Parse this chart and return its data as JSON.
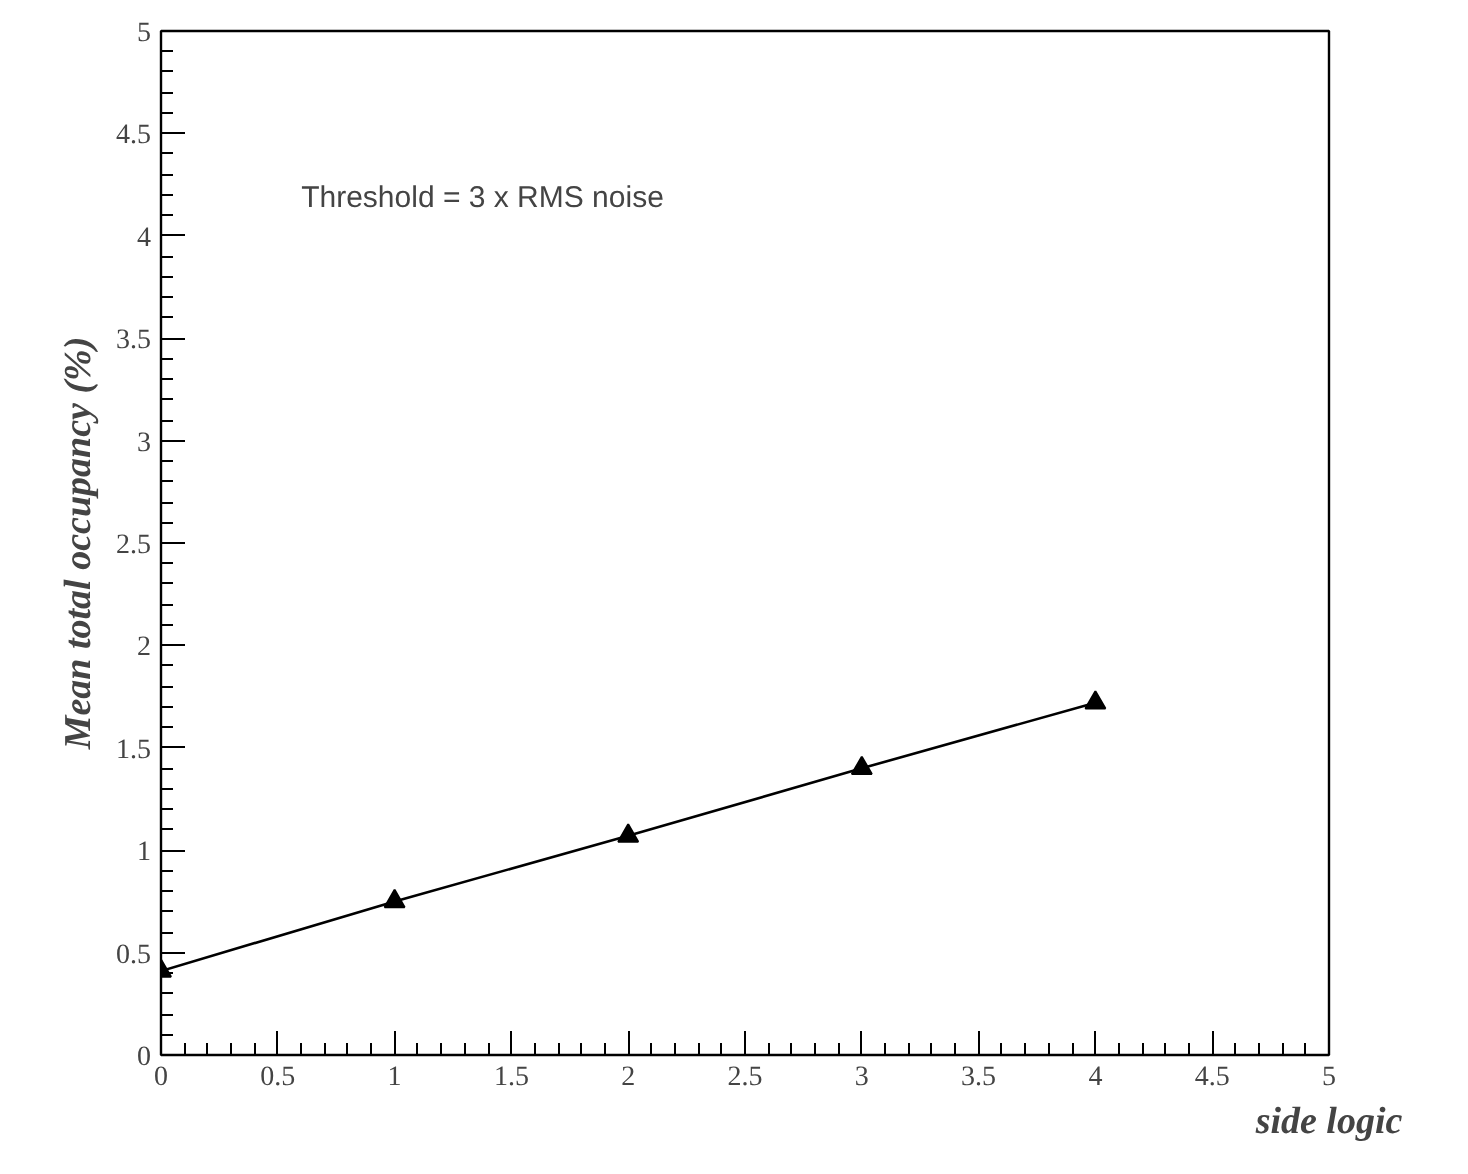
{
  "chart_data": {
    "type": "line",
    "xlabel": "side logic",
    "ylabel": "Mean total occupancy (%)",
    "annotations": [
      "Threshold = 3 x RMS noise"
    ],
    "x": [
      0,
      1,
      2,
      3,
      4
    ],
    "series": [
      {
        "color": "#000000",
        "values": [
          0.41,
          0.75,
          1.07,
          1.4,
          1.72
        ]
      }
    ],
    "marker": "triangle",
    "line_style": "solid",
    "grid": false,
    "xlim": [
      0,
      5
    ],
    "ylim": [
      0,
      5
    ],
    "xticks": [
      0,
      0.5,
      1,
      1.5,
      2,
      2.5,
      3,
      3.5,
      4,
      4.5,
      5
    ],
    "yticks": [
      0,
      0.5,
      1,
      1.5,
      2,
      2.5,
      3,
      3.5,
      4,
      4.5,
      5
    ]
  }
}
